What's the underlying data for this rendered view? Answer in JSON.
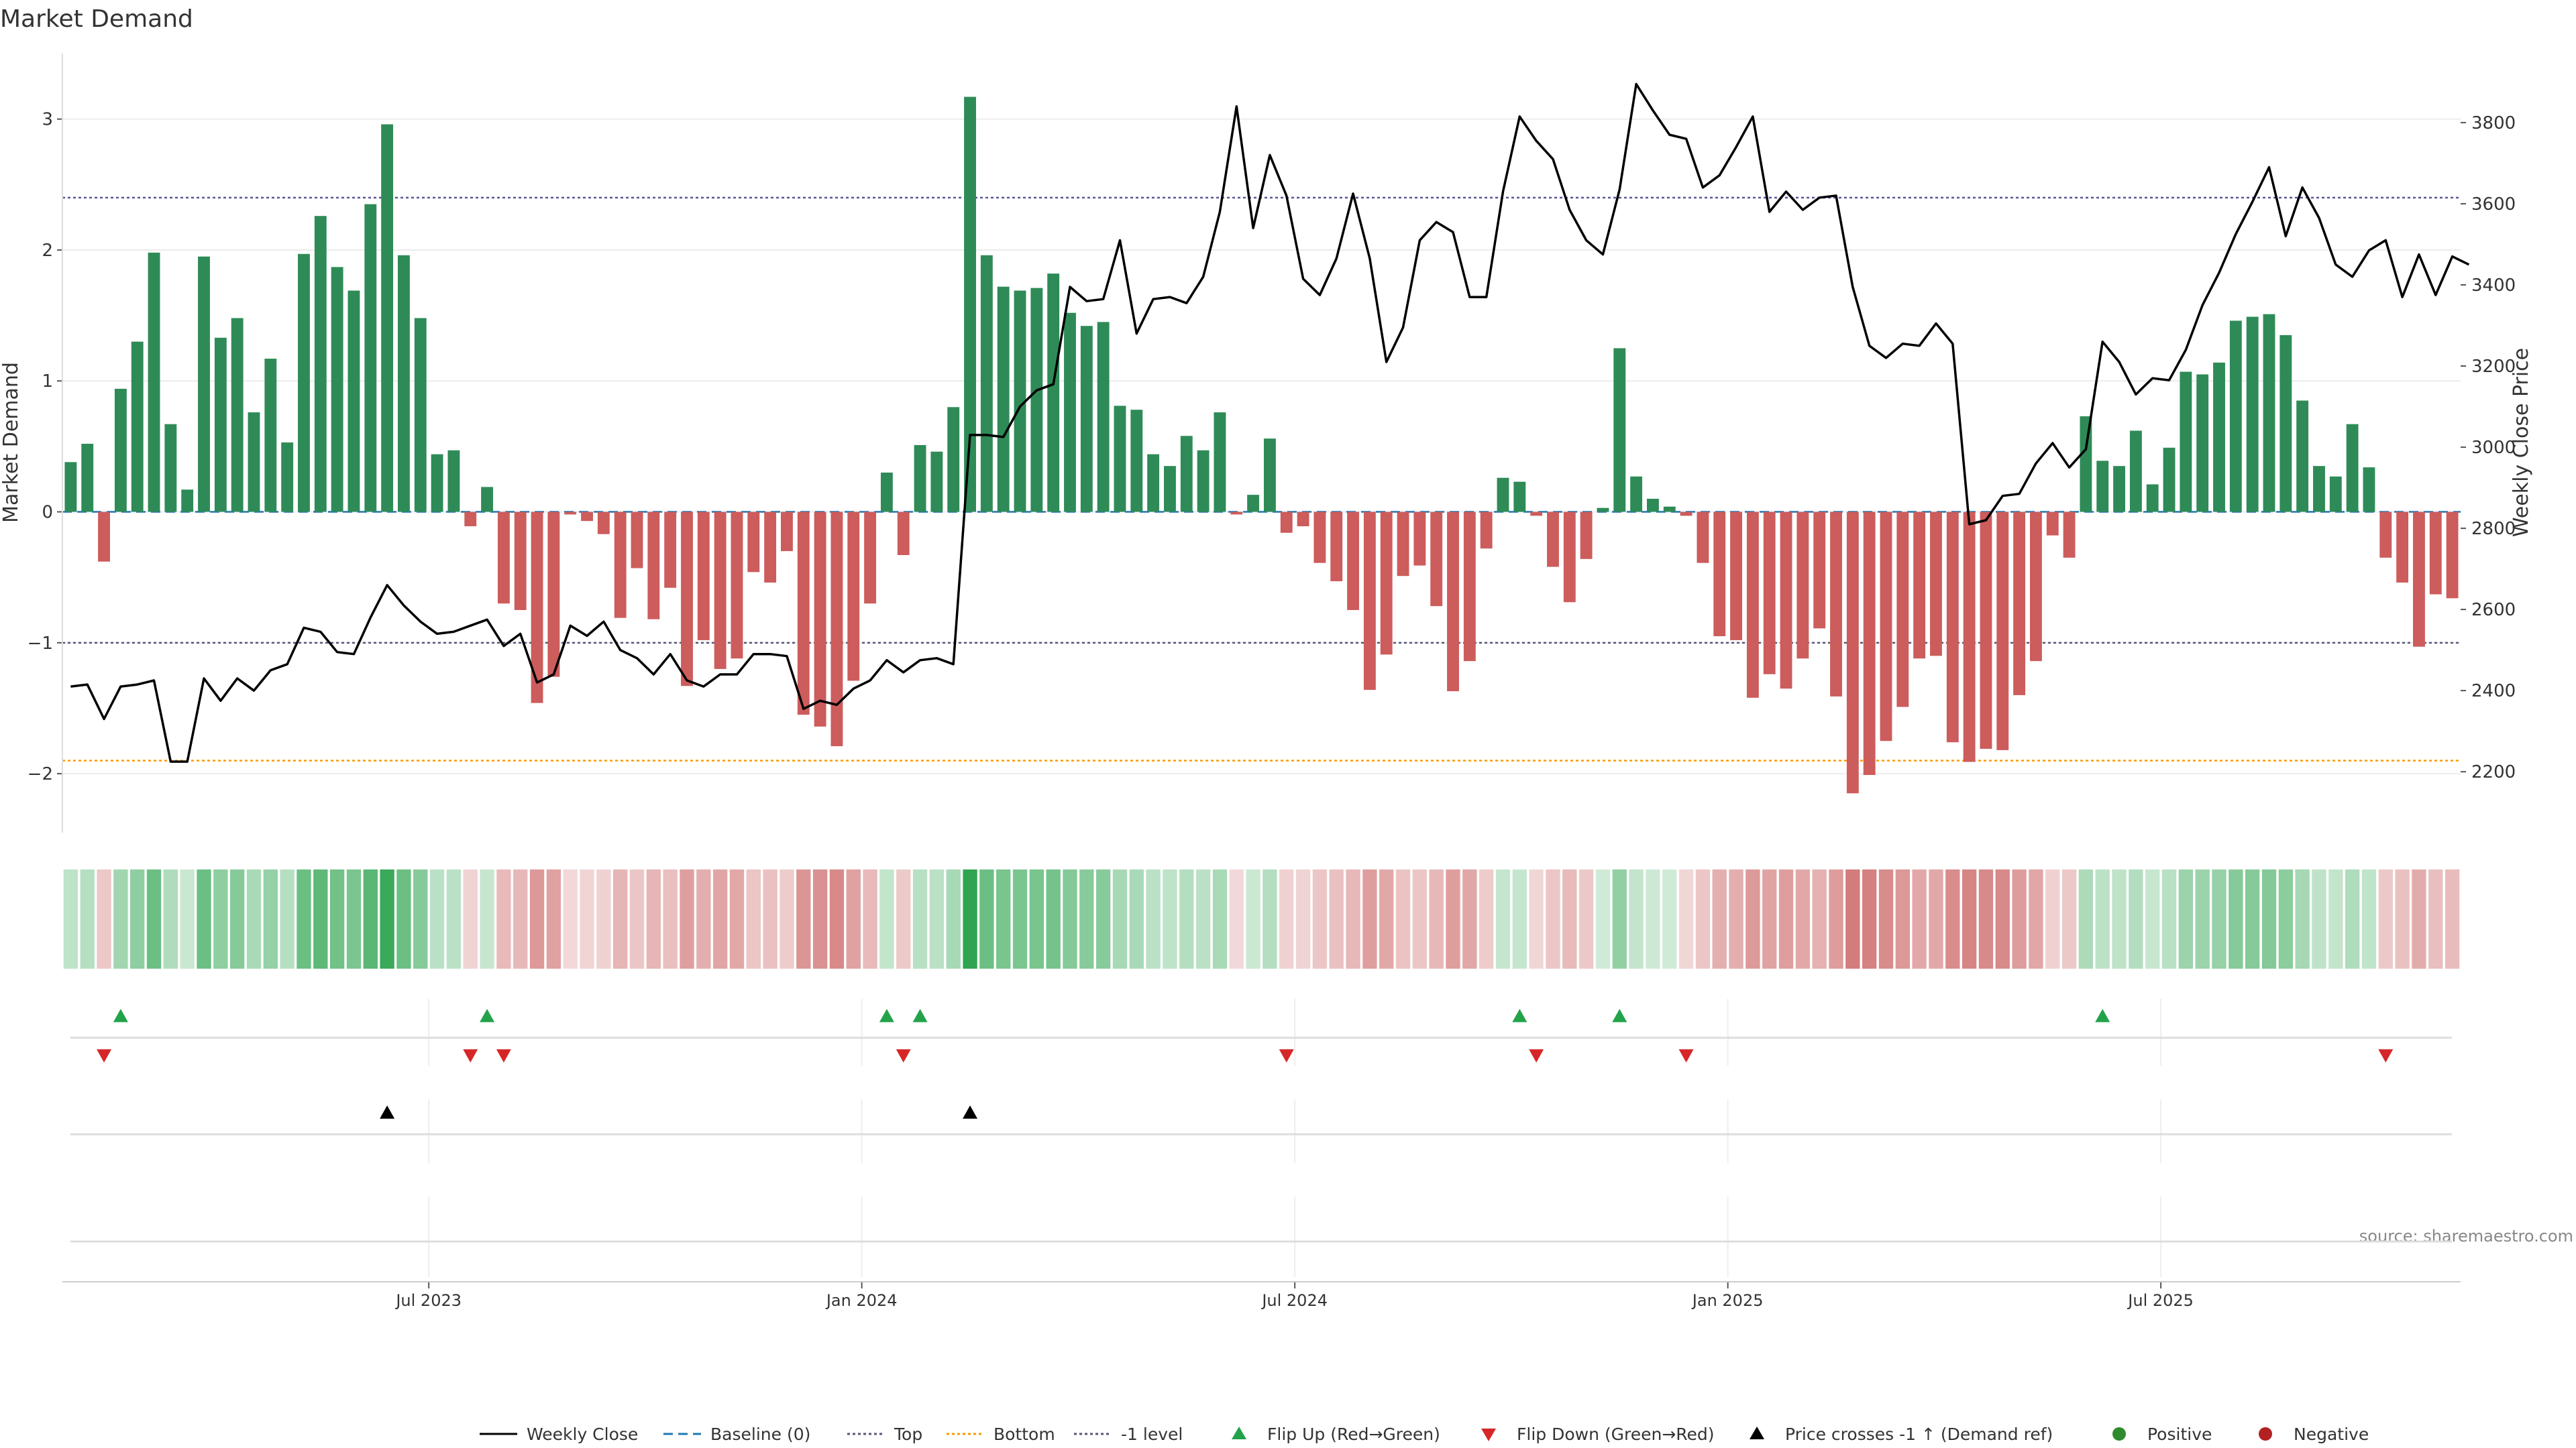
{
  "chart_data": {
    "type": "bar",
    "title": "Market Demand",
    "ylabel": "Market Demand",
    "y2label": "Weekly Close Price",
    "source": "source: sharemaestro.com",
    "ylim": [
      -2.45,
      3.5
    ],
    "y2lim": [
      2050,
      3970
    ],
    "y_ticks": [
      3,
      2,
      1,
      0,
      -1,
      -2
    ],
    "y_tick_labels": [
      "3",
      "2",
      "1",
      "0",
      "−1",
      "−2"
    ],
    "y2_ticks": [
      3800,
      3600,
      3400,
      3200,
      3000,
      2800,
      2600,
      2400,
      2200
    ],
    "y2_tick_labels": [
      "3800",
      "3600",
      "3400",
      "3200",
      "3000",
      "2800",
      "2600",
      "2400",
      "2200"
    ],
    "x_ticks": [
      {
        "label": "Jul 2023",
        "index": 22
      },
      {
        "label": "Jan 2024",
        "index": 48
      },
      {
        "label": "Jul 2024",
        "index": 74
      },
      {
        "label": "Jan 2025",
        "index": 100
      },
      {
        "label": "Jul 2025",
        "index": 126
      }
    ],
    "reference_lines": {
      "top": 2.4,
      "bottom": -1.9,
      "minus_one": -1.0,
      "baseline": 0
    },
    "colors": {
      "positive": "#2e8b57",
      "negative": "#cd5c5c",
      "price": "#000000",
      "top": "#555599",
      "bottom": "#ff9900",
      "minus_one": "#555577",
      "baseline": "#1f77b4",
      "flip_up": "#22a34a",
      "flip_down": "#d62728"
    },
    "demand": [
      0.38,
      0.52,
      -0.38,
      0.94,
      1.3,
      1.98,
      0.67,
      0.17,
      1.95,
      1.33,
      1.48,
      0.76,
      1.17,
      0.53,
      1.97,
      2.26,
      1.87,
      1.69,
      2.35,
      2.96,
      1.96,
      1.48,
      0.44,
      0.47,
      -0.11,
      0.19,
      -0.7,
      -0.75,
      -1.46,
      -1.26,
      -0.02,
      -0.07,
      -0.17,
      -0.81,
      -0.43,
      -0.82,
      -0.58,
      -1.33,
      -0.98,
      -1.2,
      -1.12,
      -0.46,
      -0.54,
      -0.3,
      -1.55,
      -1.64,
      -1.79,
      -1.29,
      -0.7,
      0.3,
      -0.33,
      0.51,
      0.46,
      0.8,
      3.17,
      1.96,
      1.72,
      1.69,
      1.71,
      1.82,
      1.52,
      1.42,
      1.45,
      0.81,
      0.78,
      0.44,
      0.35,
      0.58,
      0.47,
      0.76,
      -0.02,
      0.13,
      0.56,
      -0.16,
      -0.11,
      -0.39,
      -0.53,
      -0.75,
      -1.36,
      -1.09,
      -0.49,
      -0.41,
      -0.72,
      -1.37,
      -1.14,
      -0.28,
      0.26,
      0.23,
      -0.03,
      -0.42,
      -0.69,
      -0.36,
      0.03,
      1.25,
      0.27,
      0.1,
      0.04,
      -0.03,
      -0.39,
      -0.95,
      -0.98,
      -1.42,
      -1.24,
      -1.35,
      -1.12,
      -0.89,
      -1.41,
      -2.15,
      -2.01,
      -1.75,
      -1.49,
      -1.12,
      -1.1,
      -1.76,
      -1.91,
      -1.81,
      -1.82,
      -1.4,
      -1.14,
      -0.18,
      -0.35,
      0.73,
      0.39,
      0.35,
      0.62,
      0.21,
      0.49,
      1.07,
      1.05,
      1.14,
      1.46,
      1.49,
      1.51,
      1.35,
      0.85,
      0.35,
      0.27,
      0.67,
      0.34,
      -0.35,
      -0.54,
      -1.03,
      -0.63,
      -0.66
    ],
    "price": [
      2410,
      2415,
      2330,
      2410,
      2415,
      2425,
      2225,
      2225,
      2430,
      2375,
      2430,
      2400,
      2450,
      2465,
      2555,
      2545,
      2495,
      2490,
      2580,
      2660,
      2610,
      2570,
      2540,
      2545,
      2560,
      2575,
      2510,
      2540,
      2420,
      2440,
      2560,
      2535,
      2570,
      2500,
      2480,
      2440,
      2490,
      2425,
      2410,
      2440,
      2440,
      2490,
      2490,
      2485,
      2355,
      2375,
      2365,
      2405,
      2425,
      2475,
      2445,
      2475,
      2480,
      2465,
      3030,
      3030,
      3025,
      3100,
      3140,
      3155,
      3395,
      3360,
      3365,
      3510,
      3280,
      3365,
      3370,
      3355,
      3420,
      3580,
      3840,
      3540,
      3720,
      3620,
      3415,
      3375,
      3465,
      3625,
      3465,
      3210,
      3295,
      3510,
      3555,
      3530,
      3370,
      3370,
      3630,
      3815,
      3755,
      3710,
      3585,
      3510,
      3475,
      3635,
      3895,
      3830,
      3770,
      3760,
      3640,
      3670,
      3740,
      3815,
      3580,
      3630,
      3585,
      3615,
      3620,
      3395,
      3250,
      3220,
      3255,
      3250,
      3305,
      3255,
      2810,
      2820,
      2880,
      2885,
      2960,
      3010,
      2950,
      2995,
      3260,
      3210,
      3130,
      3170,
      3165,
      3240,
      3350,
      3430,
      3525,
      3605,
      3690,
      3520,
      3640,
      3565,
      3450,
      3420,
      3485,
      3510,
      3370,
      3475,
      3375,
      3470,
      3450
    ],
    "flip_up": [
      3,
      25,
      49,
      51,
      87,
      93,
      122
    ],
    "flip_down": [
      2,
      24,
      26,
      50,
      73,
      88,
      97,
      139
    ],
    "price_crosses": [
      19,
      54
    ],
    "legend": [
      {
        "label": "Weekly Close",
        "symbol": "line"
      },
      {
        "label": "Baseline (0)",
        "symbol": "dash"
      },
      {
        "label": "Top",
        "symbol": "dot"
      },
      {
        "label": "Bottom",
        "symbol": "dot-orange"
      },
      {
        "label": "-1 level",
        "symbol": "dot"
      },
      {
        "label": "Flip Up (Red→Green)",
        "symbol": "tri-up-green"
      },
      {
        "label": "Flip Down (Green→Red)",
        "symbol": "tri-down-red"
      },
      {
        "label": "Price crosses -1 ↑ (Demand ref)",
        "symbol": "tri-up-black"
      },
      {
        "label": "Positive",
        "symbol": "dot-green"
      },
      {
        "label": "Negative",
        "symbol": "dot-red"
      }
    ]
  }
}
